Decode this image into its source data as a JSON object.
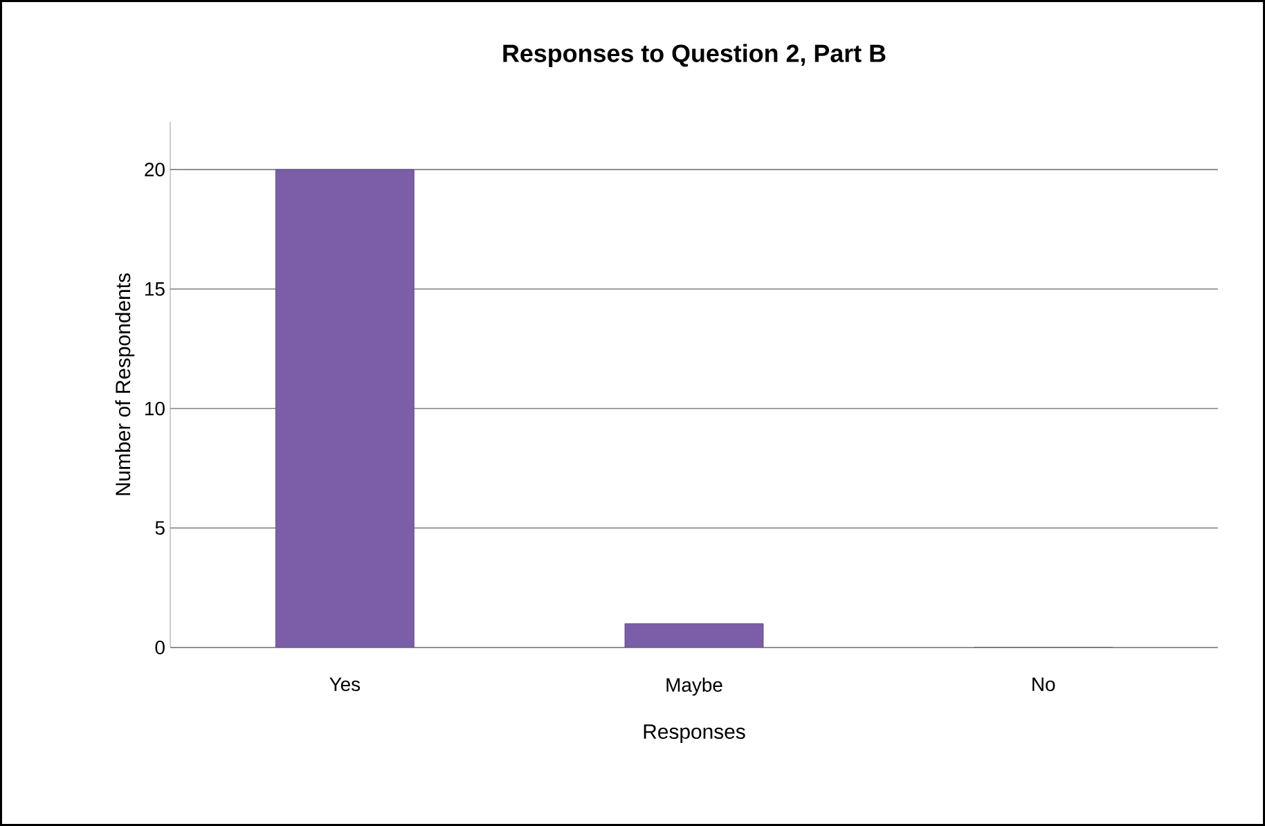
{
  "chart_data": {
    "type": "bar",
    "title": "Responses to Question 2, Part B",
    "xlabel": "Responses",
    "ylabel": "Number of Respondents",
    "categories": [
      "Yes",
      "Maybe",
      "No"
    ],
    "values": [
      20,
      1,
      0
    ],
    "color": "#7b5ea7",
    "ylim": [
      0,
      22
    ],
    "yticks": [
      0,
      5,
      10,
      15,
      20
    ],
    "grid": "y"
  }
}
